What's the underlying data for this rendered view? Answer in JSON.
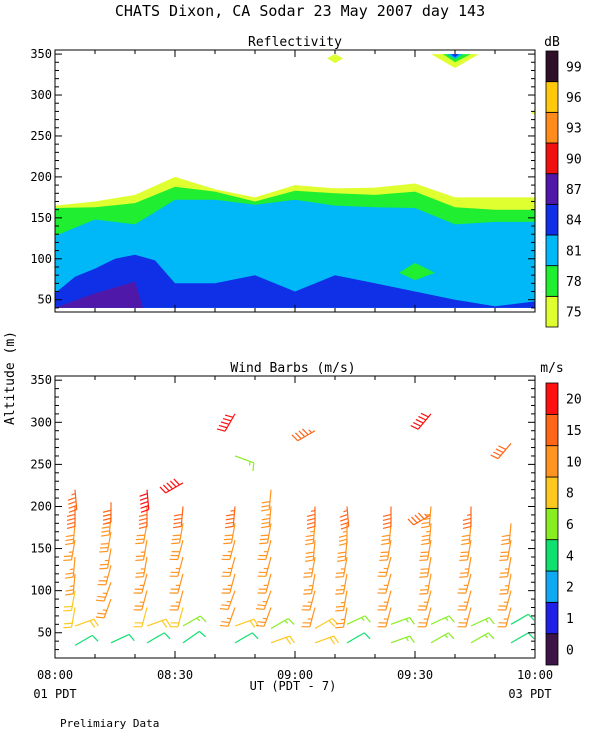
{
  "title": "CHATS Dixon, CA  Sodar  23 May 2007  day 143",
  "footer_note": "Prelimiary Data",
  "y_axis_label": "Altitude (m)",
  "x_axis": {
    "label": "UT  (PDT - 7)",
    "ticks": [
      "08:00",
      "08:30",
      "09:00",
      "09:30",
      "10:00"
    ],
    "left_sub": "01 PDT",
    "right_sub": "03 PDT",
    "range_minutes_ut": [
      480,
      600
    ]
  },
  "chart_data": [
    {
      "type": "heatmap",
      "title": "Reflectivity",
      "units": "dB",
      "xlim_minutes": [
        480,
        600
      ],
      "ylim": [
        35,
        355
      ],
      "yticks": [
        50,
        100,
        150,
        200,
        250,
        300,
        350
      ],
      "legend": {
        "levels": [
          "75",
          "78",
          "81",
          "84",
          "87",
          "90",
          "93",
          "96",
          "99"
        ],
        "colors": [
          "#e0ff30",
          "#20ee30",
          "#00b8f8",
          "#1030e8",
          "#5018a8",
          "#f01010",
          "#ff8c1a",
          "#ffc80a",
          "#301028"
        ]
      },
      "bands": [
        {
          "level": "75",
          "color": "#e0ff30",
          "x": [
            480,
            490,
            500,
            510,
            520,
            530,
            540,
            550,
            560,
            570,
            580,
            590,
            600
          ],
          "lower": [
            40,
            40,
            40,
            40,
            40,
            40,
            40,
            40,
            40,
            40,
            40,
            40,
            40
          ],
          "upper": [
            165,
            170,
            178,
            200,
            185,
            175,
            190,
            186,
            187,
            192,
            175,
            175,
            175
          ]
        },
        {
          "level": "78",
          "color": "#20ee30",
          "x": [
            480,
            490,
            500,
            510,
            520,
            530,
            540,
            550,
            560,
            570,
            580,
            590,
            600
          ],
          "lower": [
            40,
            40,
            40,
            40,
            40,
            40,
            40,
            40,
            40,
            40,
            40,
            40,
            40
          ],
          "upper": [
            162,
            163,
            168,
            188,
            182,
            170,
            183,
            180,
            178,
            182,
            163,
            160,
            160
          ]
        },
        {
          "level": "81",
          "color": "#00b8f8",
          "x": [
            480,
            490,
            500,
            510,
            520,
            530,
            540,
            550,
            560,
            570,
            580,
            590,
            600
          ],
          "lower": [
            40,
            40,
            40,
            40,
            40,
            40,
            40,
            40,
            40,
            40,
            40,
            40,
            40
          ],
          "upper": [
            128,
            148,
            142,
            172,
            172,
            166,
            172,
            165,
            163,
            162,
            142,
            145,
            145
          ]
        },
        {
          "level": "84",
          "color": "#1030e8",
          "x": [
            480,
            485,
            490,
            495,
            500,
            505,
            510,
            520,
            530,
            540,
            550,
            560,
            570,
            580,
            590,
            600
          ],
          "lower": [
            40,
            40,
            40,
            40,
            40,
            40,
            40,
            40,
            40,
            40,
            40,
            40,
            40,
            40,
            40,
            40
          ],
          "upper": [
            58,
            78,
            88,
            100,
            105,
            98,
            70,
            70,
            80,
            60,
            80,
            70,
            60,
            50,
            42,
            48
          ]
        },
        {
          "level": "87",
          "color": "#5018a8",
          "x": [
            480,
            490,
            500,
            502
          ],
          "lower": [
            40,
            40,
            40,
            40
          ],
          "upper": [
            40,
            58,
            72,
            40
          ]
        }
      ],
      "patches": [
        {
          "level": "78",
          "color": "#20ee30",
          "points": [
            [
              566,
              83
            ],
            [
              570,
              95
            ],
            [
              575,
              83
            ],
            [
              570,
              74
            ]
          ]
        },
        {
          "level": "75",
          "color": "#e0ff30",
          "points": [
            [
              548,
              345
            ],
            [
              550,
              350
            ],
            [
              552,
              345
            ],
            [
              550,
              339
            ]
          ]
        },
        {
          "level": "75",
          "color": "#e0ff30",
          "points": [
            [
              574,
              350
            ],
            [
              586,
              350
            ],
            [
              580,
              333
            ]
          ]
        },
        {
          "level": "78",
          "color": "#20ee30",
          "points": [
            [
              577,
              350
            ],
            [
              584,
              350
            ],
            [
              580,
              340
            ]
          ]
        },
        {
          "level": "81",
          "color": "#00b8f8",
          "points": [
            [
              578,
              350
            ],
            [
              582,
              350
            ],
            [
              580,
              344
            ]
          ]
        },
        {
          "level": "84",
          "color": "#1030e8",
          "points": [
            [
              579,
              350
            ],
            [
              581,
              350
            ],
            [
              580,
              346
            ]
          ]
        },
        {
          "level": "75",
          "color": "#e0ff30",
          "points": [
            [
              599,
              277
            ],
            [
              600,
              283
            ],
            [
              600,
              277
            ]
          ]
        }
      ]
    },
    {
      "type": "scatter",
      "title": "Wind Barbs (m/s)",
      "units": "m/s",
      "xlim_minutes": [
        480,
        600
      ],
      "ylim": [
        20,
        355
      ],
      "yticks": [
        50,
        100,
        150,
        200,
        250,
        300,
        350
      ],
      "legend": {
        "levels": [
          "0",
          "1",
          "2",
          "4",
          "6",
          "8",
          "10",
          "15",
          "20"
        ],
        "colors": [
          "#3c1446",
          "#2020e8",
          "#10a8f0",
          "#10e070",
          "#88ee22",
          "#ffc820",
          "#ff9420",
          "#ff6618",
          "#ff1010"
        ]
      },
      "profiles": [
        {
          "time": 485,
          "barbs": [
            [
              35,
              5,
              60
            ],
            [
              58,
              9,
              70
            ],
            [
              80,
              9,
              190
            ],
            [
              100,
              9,
              190
            ],
            [
              120,
              10,
              185
            ],
            [
              140,
              10,
              185
            ],
            [
              160,
              10,
              190
            ],
            [
              180,
              12,
              185
            ],
            [
              200,
              17,
              180
            ],
            [
              220,
              19,
              175
            ]
          ]
        },
        {
          "time": 494,
          "barbs": [
            [
              38,
              5,
              65
            ],
            [
              90,
              11,
              200
            ],
            [
              110,
              11,
              200
            ],
            [
              130,
              11,
              195
            ],
            [
              150,
              11,
              190
            ],
            [
              170,
              13,
              190
            ],
            [
              190,
              14,
              185
            ],
            [
              205,
              17,
              180
            ]
          ]
        },
        {
          "time": 503,
          "barbs": [
            [
              38,
              5,
              60
            ],
            [
              58,
              9,
              70
            ],
            [
              80,
              9,
              195
            ],
            [
              100,
              10,
              195
            ],
            [
              120,
              10,
              195
            ],
            [
              140,
              10,
              190
            ],
            [
              160,
              10,
              190
            ],
            [
              180,
              12,
              190
            ],
            [
              200,
              17,
              180
            ],
            [
              220,
              20,
              175
            ]
          ]
        },
        {
          "time": 512,
          "barbs": [
            [
              38,
              5,
              55
            ],
            [
              58,
              7,
              60
            ],
            [
              80,
              9,
              195
            ],
            [
              100,
              11,
              195
            ],
            [
              120,
              11,
              195
            ],
            [
              140,
              11,
              195
            ],
            [
              160,
              12,
              195
            ],
            [
              180,
              13,
              190
            ],
            [
              200,
              17,
              185
            ],
            [
              228,
              20,
              240
            ]
          ]
        },
        {
          "time": 525,
          "barbs": [
            [
              38,
              5,
              60
            ],
            [
              58,
              9,
              70
            ],
            [
              80,
              10,
              200
            ],
            [
              100,
              10,
              200
            ],
            [
              120,
              11,
              195
            ],
            [
              140,
              11,
              195
            ],
            [
              160,
              11,
              195
            ],
            [
              180,
              12,
              190
            ],
            [
              200,
              18,
              185
            ],
            [
              260,
              6,
              110
            ],
            [
              310,
              20,
              210
            ]
          ]
        },
        {
          "time": 534,
          "barbs": [
            [
              38,
              9,
              70
            ],
            [
              55,
              7,
              60
            ],
            [
              80,
              10,
              200
            ],
            [
              100,
              11,
              200
            ],
            [
              120,
              11,
              195
            ],
            [
              140,
              11,
              195
            ],
            [
              160,
              11,
              195
            ],
            [
              180,
              12,
              190
            ],
            [
              200,
              14,
              185
            ],
            [
              220,
              13,
              185
            ]
          ]
        },
        {
          "time": 545,
          "barbs": [
            [
              38,
              9,
              70
            ],
            [
              55,
              8,
              60
            ],
            [
              80,
              10,
              195
            ],
            [
              100,
              10,
              195
            ],
            [
              120,
              10,
              190
            ],
            [
              140,
              10,
              190
            ],
            [
              160,
              12,
              185
            ],
            [
              180,
              14,
              185
            ],
            [
              200,
              18,
              180
            ],
            [
              290,
              18,
              240
            ]
          ]
        },
        {
          "time": 553,
          "barbs": [
            [
              38,
              5,
              60
            ],
            [
              60,
              7,
              65
            ],
            [
              80,
              10,
              190
            ],
            [
              100,
              10,
              190
            ],
            [
              120,
              10,
              190
            ],
            [
              140,
              11,
              190
            ],
            [
              160,
              12,
              185
            ],
            [
              180,
              14,
              180
            ],
            [
              200,
              18,
              175
            ]
          ]
        },
        {
          "time": 564,
          "barbs": [
            [
              38,
              6,
              70
            ],
            [
              60,
              6,
              70
            ],
            [
              80,
              10,
              195
            ],
            [
              100,
              10,
              195
            ],
            [
              120,
              11,
              195
            ],
            [
              140,
              11,
              195
            ],
            [
              160,
              12,
              190
            ],
            [
              180,
              13,
              185
            ],
            [
              200,
              17,
              180
            ]
          ]
        },
        {
          "time": 574,
          "barbs": [
            [
              38,
              6,
              60
            ],
            [
              60,
              7,
              65
            ],
            [
              80,
              10,
              195
            ],
            [
              100,
              10,
              195
            ],
            [
              120,
              11,
              190
            ],
            [
              140,
              12,
              190
            ],
            [
              160,
              12,
              190
            ],
            [
              180,
              14,
              185
            ],
            [
              190,
              18,
              240
            ],
            [
              200,
              14,
              185
            ],
            [
              310,
              20,
              220
            ]
          ]
        },
        {
          "time": 584,
          "barbs": [
            [
              38,
              6,
              60
            ],
            [
              58,
              6,
              65
            ],
            [
              80,
              10,
              195
            ],
            [
              100,
              10,
              195
            ],
            [
              120,
              11,
              195
            ],
            [
              140,
              11,
              190
            ],
            [
              160,
              12,
              190
            ],
            [
              180,
              13,
              185
            ],
            [
              200,
              15,
              180
            ]
          ]
        },
        {
          "time": 594,
          "barbs": [
            [
              38,
              5,
              60
            ],
            [
              60,
              5,
              60
            ],
            [
              80,
              10,
              195
            ],
            [
              100,
              10,
              195
            ],
            [
              120,
              11,
              190
            ],
            [
              140,
              11,
              190
            ],
            [
              160,
              12,
              190
            ],
            [
              180,
              13,
              185
            ],
            [
              275,
              17,
              220
            ]
          ]
        }
      ]
    }
  ]
}
